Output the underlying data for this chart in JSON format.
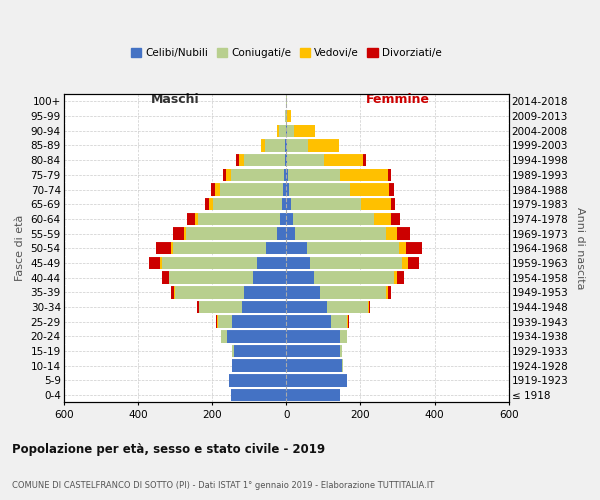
{
  "age_groups": [
    "100+",
    "95-99",
    "90-94",
    "85-89",
    "80-84",
    "75-79",
    "70-74",
    "65-69",
    "60-64",
    "55-59",
    "50-54",
    "45-49",
    "40-44",
    "35-39",
    "30-34",
    "25-29",
    "20-24",
    "15-19",
    "10-14",
    "5-9",
    "0-4"
  ],
  "birth_years": [
    "≤ 1918",
    "1919-1923",
    "1924-1928",
    "1929-1933",
    "1934-1938",
    "1939-1943",
    "1944-1948",
    "1949-1953",
    "1954-1958",
    "1959-1963",
    "1964-1968",
    "1969-1973",
    "1974-1978",
    "1979-1983",
    "1984-1988",
    "1989-1993",
    "1994-1998",
    "1999-2003",
    "2004-2008",
    "2009-2013",
    "2014-2018"
  ],
  "male": {
    "celibi": [
      0,
      0,
      1,
      2,
      3,
      5,
      8,
      12,
      18,
      25,
      55,
      80,
      90,
      115,
      120,
      145,
      160,
      140,
      145,
      155,
      150
    ],
    "coniugati": [
      1,
      3,
      18,
      55,
      110,
      145,
      170,
      185,
      220,
      245,
      250,
      255,
      225,
      185,
      115,
      40,
      15,
      5,
      2,
      0,
      0
    ],
    "vedovi": [
      0,
      0,
      5,
      10,
      15,
      12,
      15,
      10,
      8,
      5,
      5,
      5,
      2,
      2,
      0,
      2,
      0,
      0,
      0,
      0,
      0
    ],
    "divorziati": [
      0,
      0,
      0,
      0,
      8,
      8,
      10,
      12,
      22,
      30,
      40,
      30,
      18,
      8,
      5,
      2,
      0,
      0,
      0,
      0,
      0
    ]
  },
  "female": {
    "nubili": [
      0,
      0,
      2,
      3,
      3,
      5,
      8,
      12,
      18,
      25,
      55,
      65,
      75,
      90,
      110,
      120,
      145,
      145,
      150,
      165,
      145
    ],
    "coniugate": [
      1,
      3,
      20,
      55,
      100,
      140,
      165,
      190,
      220,
      245,
      248,
      248,
      215,
      180,
      110,
      45,
      18,
      5,
      2,
      0,
      0
    ],
    "vedove": [
      2,
      10,
      55,
      85,
      105,
      130,
      105,
      80,
      45,
      28,
      20,
      15,
      10,
      5,
      2,
      2,
      0,
      0,
      0,
      0,
      0
    ],
    "divorziate": [
      0,
      0,
      0,
      0,
      8,
      8,
      12,
      12,
      25,
      35,
      42,
      30,
      18,
      8,
      5,
      2,
      0,
      0,
      0,
      0,
      0
    ]
  },
  "colors": {
    "celibi": "#4472c4",
    "coniugati": "#b8cf8e",
    "vedovi": "#ffc000",
    "divorziati": "#cc0000"
  },
  "title": "Popolazione per età, sesso e stato civile - 2019",
  "subtitle": "COMUNE DI CASTELFRANCO DI SOTTO (PI) - Dati ISTAT 1° gennaio 2019 - Elaborazione TUTTITALIA.IT",
  "xlabel_left": "Maschi",
  "xlabel_right": "Femmine",
  "ylabel_left": "Fasce di età",
  "ylabel_right": "Anni di nascita",
  "xlim": 600,
  "legend_labels": [
    "Celibi/Nubili",
    "Coniugati/e",
    "Vedovi/e",
    "Divorziati/e"
  ],
  "background_color": "#f0f0f0",
  "plot_bg_color": "#ffffff"
}
